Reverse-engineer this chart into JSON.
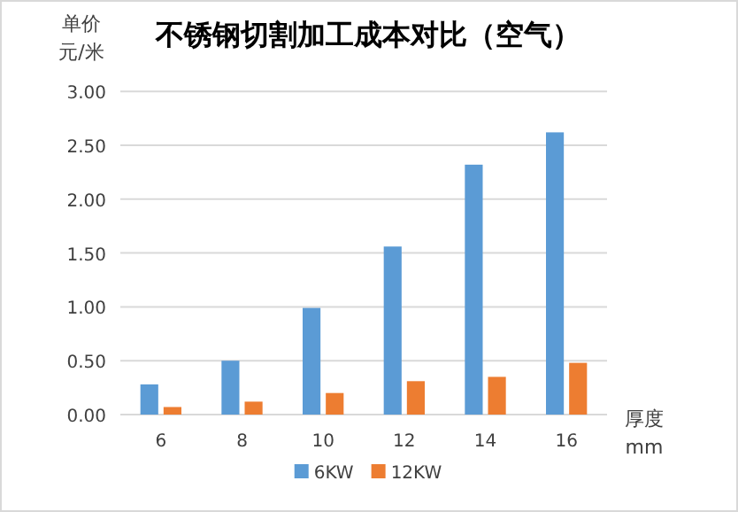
{
  "chart_data": {
    "type": "bar",
    "title": "不锈钢切割加工成本对比（空气）",
    "ylabel": "单价元/米",
    "xlabel": "厚度mm",
    "categories": [
      "6",
      "8",
      "10",
      "12",
      "14",
      "16"
    ],
    "series": [
      {
        "name": "6KW",
        "color": "#5b9bd5",
        "values": [
          0.28,
          0.5,
          0.99,
          1.56,
          2.32,
          2.62
        ]
      },
      {
        "name": "12KW",
        "color": "#ed7d31",
        "values": [
          0.07,
          0.12,
          0.2,
          0.31,
          0.35,
          0.48
        ]
      }
    ],
    "ylim": [
      0,
      3
    ],
    "yticks": [
      {
        "value": 0,
        "label": "0.00"
      },
      {
        "value": 0.5,
        "label": "0.50"
      },
      {
        "value": 1,
        "label": "1.00"
      },
      {
        "value": 1.5,
        "label": "1.50"
      },
      {
        "value": 2,
        "label": "2.00"
      },
      {
        "value": 2.5,
        "label": "2.50"
      },
      {
        "value": 3,
        "label": "3.00"
      }
    ],
    "grid": "y",
    "legend": "bottom"
  }
}
